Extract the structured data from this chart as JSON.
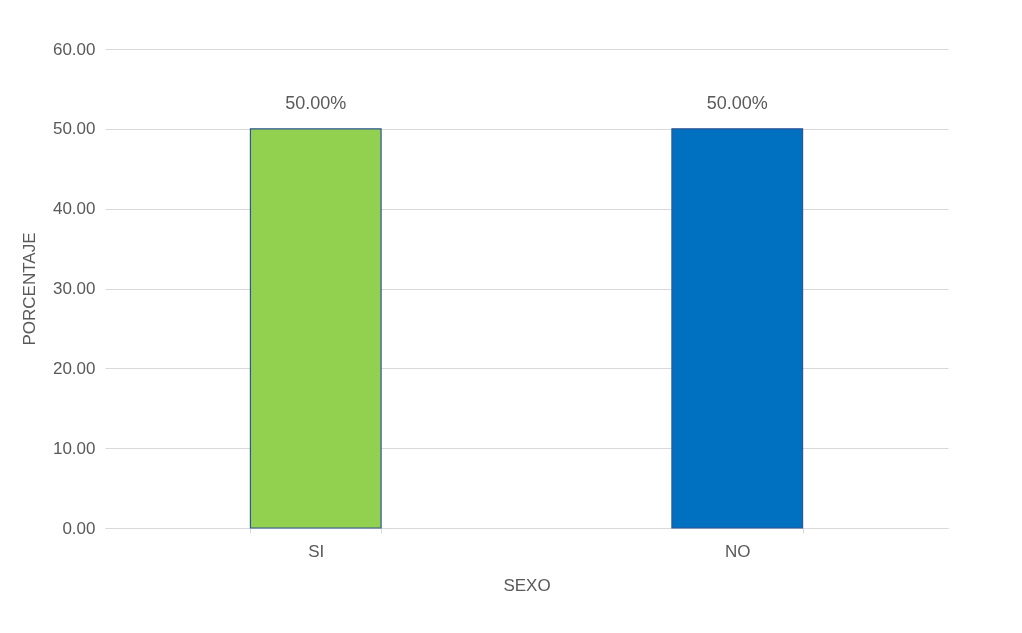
{
  "chart_data": {
    "type": "bar",
    "xlabel": "SEXO",
    "ylabel": "PORCENTAJE",
    "categories": [
      "SI",
      "NO"
    ],
    "values": [
      50.0,
      50.0
    ],
    "colors": [
      "#92d050",
      "#0070c0"
    ],
    "value_labels": [
      "50.00%",
      "50.00%"
    ],
    "ylim": [
      0,
      60
    ],
    "yticks": [
      {
        "value": 0,
        "label": "0.00"
      },
      {
        "value": 10,
        "label": "10.00"
      },
      {
        "value": 20,
        "label": "20.00"
      },
      {
        "value": 30,
        "label": "30.00"
      },
      {
        "value": 40,
        "label": "40.00"
      },
      {
        "value": 50,
        "label": "50.00"
      },
      {
        "value": 60,
        "label": "60.00"
      }
    ],
    "grid": "y"
  }
}
